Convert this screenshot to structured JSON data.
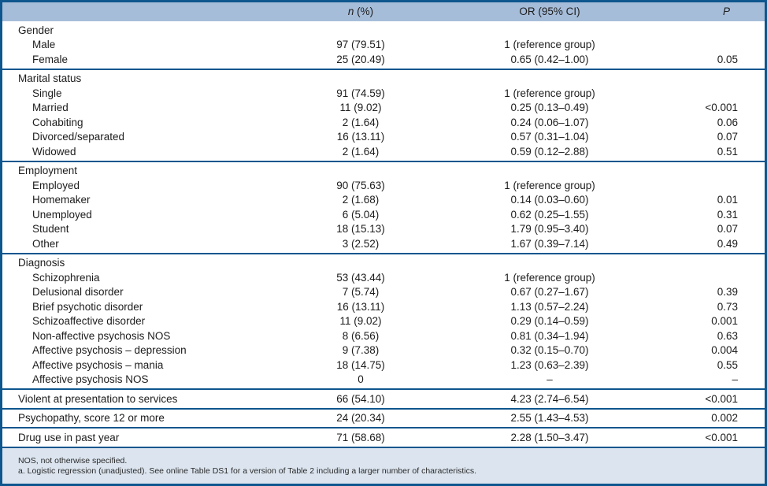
{
  "colors": {
    "border_navy": "#0e568e",
    "header_background": "#a6bdd9",
    "footer_background": "#dce5ef",
    "text": "#1c1c1c"
  },
  "table": {
    "header": {
      "n_italic": "n",
      "n_rest": " (%)",
      "or": "OR (95% CI)",
      "p": "P"
    },
    "sections": [
      {
        "rows": [
          {
            "label": "Gender",
            "indent": false,
            "n": "",
            "or": "",
            "p": ""
          },
          {
            "label": "Male",
            "indent": true,
            "n": "97 (79.51)",
            "or": "1 (reference group)",
            "p": ""
          },
          {
            "label": "Female",
            "indent": true,
            "n": "25 (20.49)",
            "or": "0.65 (0.42–1.00)",
            "p": "0.05"
          }
        ]
      },
      {
        "rows": [
          {
            "label": "Marital status",
            "indent": false,
            "n": "",
            "or": "",
            "p": ""
          },
          {
            "label": "Single",
            "indent": true,
            "n": "91 (74.59)",
            "or": "1 (reference group)",
            "p": ""
          },
          {
            "label": "Married",
            "indent": true,
            "n": "11 (9.02)",
            "or": "0.25 (0.13–0.49)",
            "p": "<0.001"
          },
          {
            "label": "Cohabiting",
            "indent": true,
            "n": "2 (1.64)",
            "or": "0.24 (0.06–1.07)",
            "p": "0.06"
          },
          {
            "label": "Divorced/separated",
            "indent": true,
            "n": "16 (13.11)",
            "or": "0.57 (0.31–1.04)",
            "p": "0.07"
          },
          {
            "label": "Widowed",
            "indent": true,
            "n": "2 (1.64)",
            "or": "0.59 (0.12–2.88)",
            "p": "0.51"
          }
        ]
      },
      {
        "rows": [
          {
            "label": "Employment",
            "indent": false,
            "n": "",
            "or": "",
            "p": ""
          },
          {
            "label": "Employed",
            "indent": true,
            "n": "90 (75.63)",
            "or": "1 (reference group)",
            "p": ""
          },
          {
            "label": "Homemaker",
            "indent": true,
            "n": "2 (1.68)",
            "or": "0.14 (0.03–0.60)",
            "p": "0.01"
          },
          {
            "label": "Unemployed",
            "indent": true,
            "n": "6 (5.04)",
            "or": "0.62 (0.25–1.55)",
            "p": "0.31"
          },
          {
            "label": "Student",
            "indent": true,
            "n": "18 (15.13)",
            "or": "1.79 (0.95–3.40)",
            "p": "0.07"
          },
          {
            "label": "Other",
            "indent": true,
            "n": "3 (2.52)",
            "or": "1.67 (0.39–7.14)",
            "p": "0.49"
          }
        ]
      },
      {
        "rows": [
          {
            "label": "Diagnosis",
            "indent": false,
            "n": "",
            "or": "",
            "p": ""
          },
          {
            "label": "Schizophrenia",
            "indent": true,
            "n": "53 (43.44)",
            "or": "1 (reference group)",
            "p": ""
          },
          {
            "label": "Delusional disorder",
            "indent": true,
            "n": "7 (5.74)",
            "or": "0.67 (0.27–1.67)",
            "p": "0.39"
          },
          {
            "label": "Brief psychotic disorder",
            "indent": true,
            "n": "16 (13.11)",
            "or": "1.13 (0.57–2.24)",
            "p": "0.73"
          },
          {
            "label": "Schizoaffective disorder",
            "indent": true,
            "n": "11 (9.02)",
            "or": "0.29 (0.14–0.59)",
            "p": "0.001"
          },
          {
            "label": "Non-affective psychosis NOS",
            "indent": true,
            "n": "8 (6.56)",
            "or": "0.81 (0.34–1.94)",
            "p": "0.63"
          },
          {
            "label": "Affective psychosis – depression",
            "indent": true,
            "n": "9 (7.38)",
            "or": "0.32 (0.15–0.70)",
            "p": "0.004"
          },
          {
            "label": "Affective psychosis – mania",
            "indent": true,
            "n": "18 (14.75)",
            "or": "1.23 (0.63–2.39)",
            "p": "0.55"
          },
          {
            "label": "Affective psychosis NOS",
            "indent": true,
            "n": "0",
            "or": "–",
            "p": "–"
          }
        ]
      },
      {
        "rows": [
          {
            "label": "Violent at presentation to services",
            "indent": false,
            "n": "66 (54.10)",
            "or": "4.23 (2.74–6.54)",
            "p": "<0.001"
          }
        ]
      },
      {
        "rows": [
          {
            "label": "Psychopathy, score 12 or more",
            "indent": false,
            "n": "24 (20.34)",
            "or": "2.55 (1.43–4.53)",
            "p": "0.002"
          }
        ]
      },
      {
        "rows": [
          {
            "label": "Drug use in past year",
            "indent": false,
            "n": "71 (58.68)",
            "or": "2.28 (1.50–3.47)",
            "p": "<0.001"
          }
        ]
      }
    ],
    "footnotes": [
      "NOS, not otherwise specified.",
      "a. Logistic regression (unadjusted). See online Table DS1 for a version of Table 2 including a larger number of characteristics."
    ]
  }
}
